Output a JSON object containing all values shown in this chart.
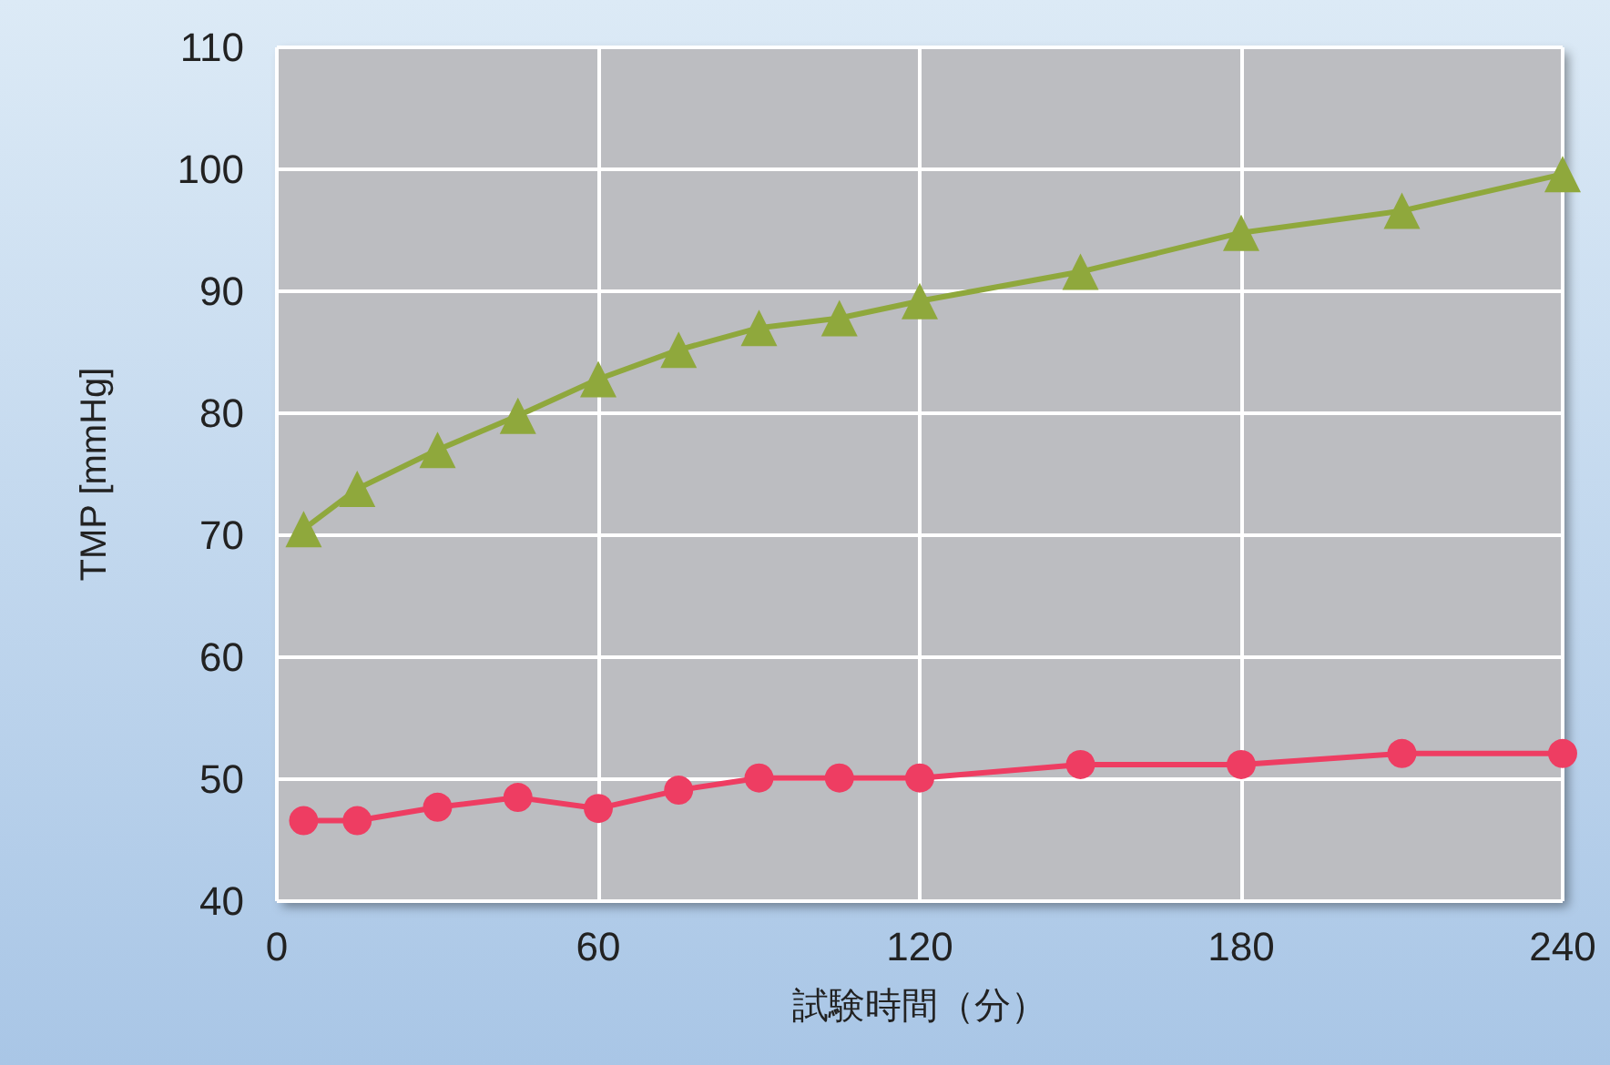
{
  "chart_data": {
    "type": "line",
    "xlabel": "試験時間（分）",
    "ylabel": "TMP [mmHg]",
    "x": [
      5,
      15,
      30,
      45,
      60,
      75,
      90,
      105,
      120,
      150,
      180,
      210,
      240
    ],
    "series": [
      {
        "color": "#8fa83c",
        "marker": "triangle",
        "values": [
          70.5,
          73.8,
          77,
          79.8,
          82.8,
          85.2,
          87,
          87.8,
          89.2,
          91.6,
          94.8,
          96.6,
          99.6
        ]
      },
      {
        "color": "#ee3d62",
        "marker": "circle",
        "values": [
          46.6,
          46.6,
          47.7,
          48.5,
          47.6,
          49.1,
          50.1,
          50.1,
          50.1,
          51.2,
          51.2,
          52.1,
          52.1
        ]
      }
    ],
    "xlim": [
      0,
      240
    ],
    "xticks": [
      0,
      60,
      120,
      180,
      240
    ],
    "ylim": [
      40,
      110
    ],
    "yticks": [
      40,
      50,
      60,
      70,
      80,
      90,
      100,
      110
    ],
    "grid": true,
    "line_style": "solid"
  }
}
